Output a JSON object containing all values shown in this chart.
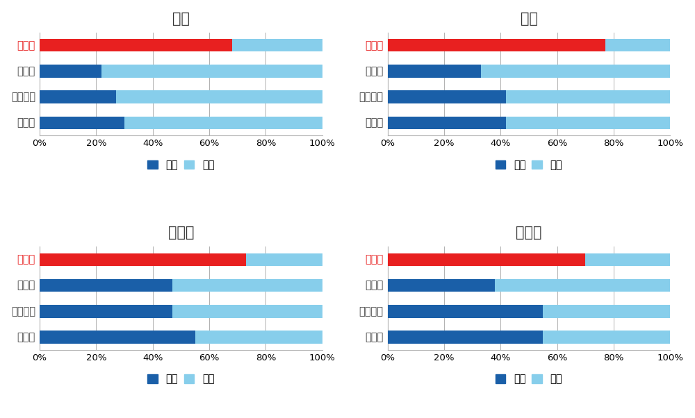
{
  "charts": [
    {
      "title": "東大",
      "categories": [
        "埼玉県",
        "東京都",
        "神奈川県",
        "千葉県"
      ],
      "public": [
        68,
        22,
        27,
        30
      ],
      "private": [
        32,
        78,
        73,
        70
      ]
    },
    {
      "title": "京大",
      "categories": [
        "埼玉県",
        "東京都",
        "神奈川県",
        "千葉県"
      ],
      "public": [
        77,
        33,
        42,
        42
      ],
      "private": [
        23,
        67,
        58,
        58
      ]
    },
    {
      "title": "一橋大",
      "categories": [
        "埼玉県",
        "東京都",
        "神奈川県",
        "千葉県"
      ],
      "public": [
        73,
        47,
        47,
        55
      ],
      "private": [
        27,
        53,
        53,
        45
      ]
    },
    {
      "title": "東工大",
      "categories": [
        "埼玉県",
        "東京都",
        "神奈川県",
        "千葉県"
      ],
      "public": [
        70,
        38,
        55,
        55
      ],
      "private": [
        30,
        62,
        45,
        45
      ]
    }
  ],
  "color_public_saitama": "#e82020",
  "color_private_saitama": "#87ceeb",
  "color_public": "#1a5fa8",
  "color_private": "#87ceeb",
  "saitama_label_color": "#e82020",
  "other_label_color": "#404040",
  "legend_public": "公立",
  "legend_private": "私立",
  "bg_color": "#ffffff",
  "title_fontsize": 15,
  "label_fontsize": 10.5,
  "tick_fontsize": 9.5,
  "legend_fontsize": 10.5
}
